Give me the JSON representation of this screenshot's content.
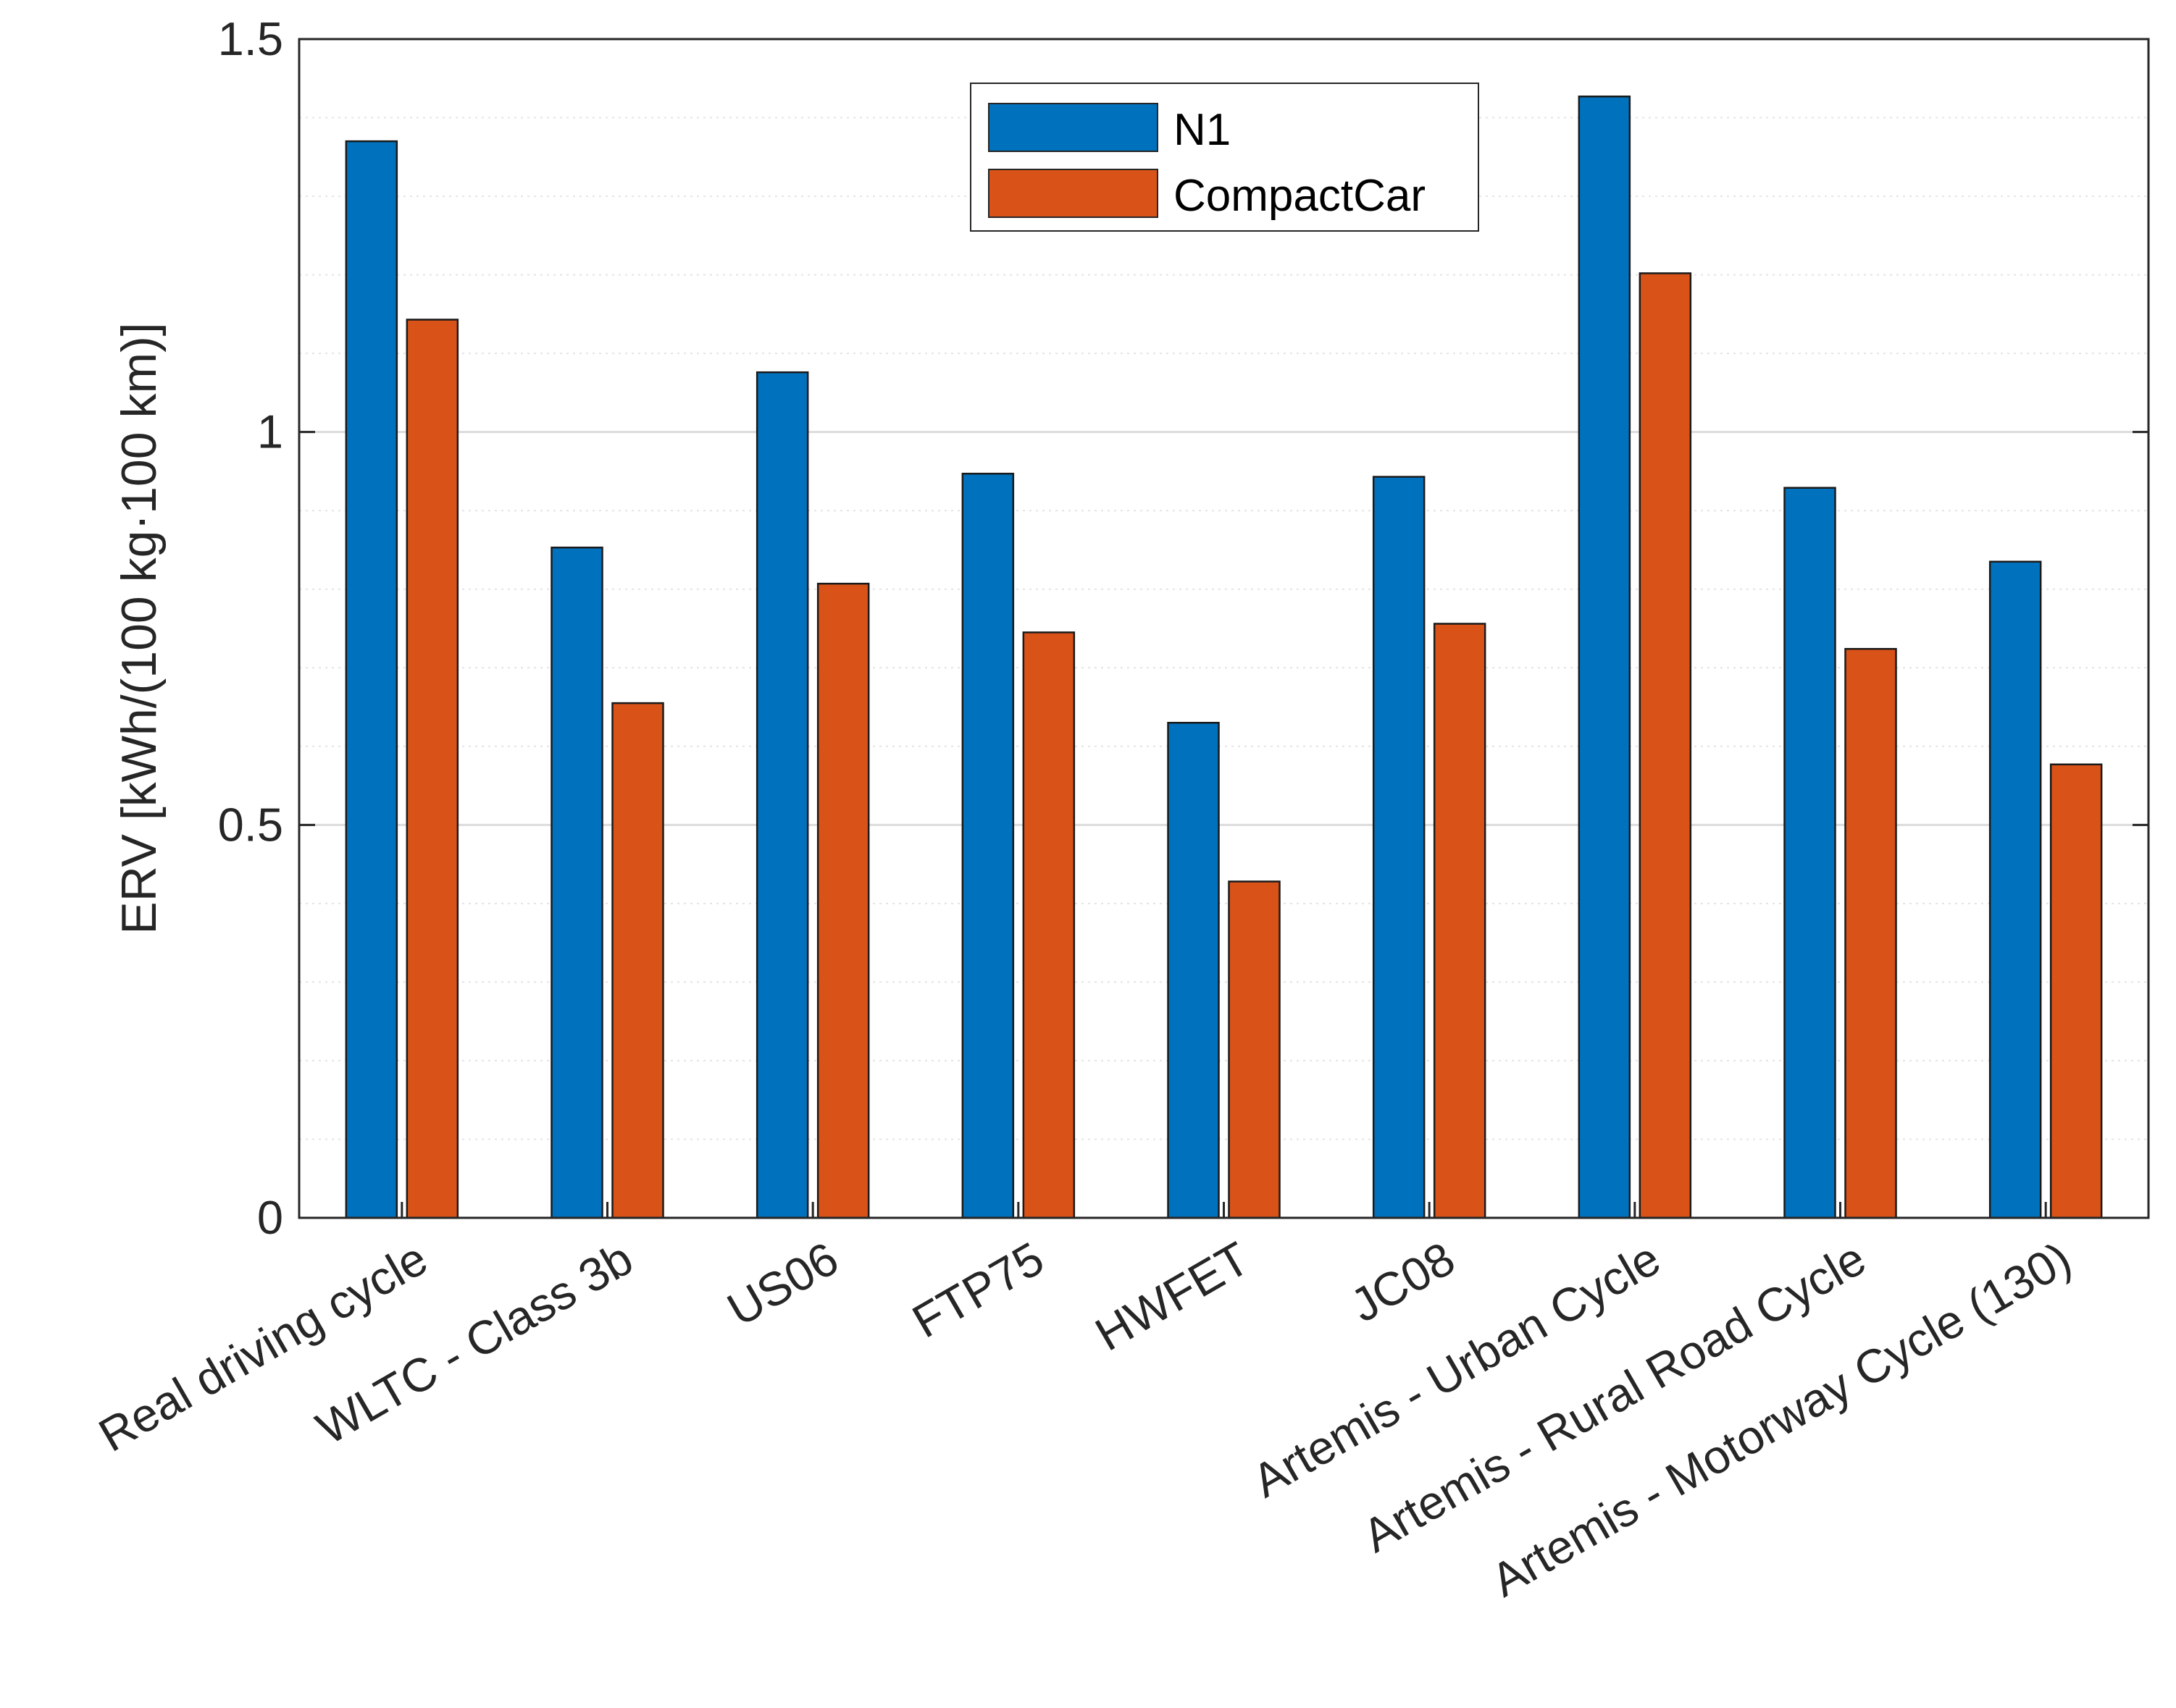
{
  "chart_data": {
    "type": "bar",
    "title": "",
    "xlabel": "",
    "ylabel": "ERV [kWh/(100 kg·100 km)]",
    "ylim": [
      0,
      1.5
    ],
    "yticks": [
      "0",
      "0.5",
      "1",
      "1.5"
    ],
    "grid": true,
    "minor_grid": true,
    "legend_placement": "top-center",
    "categories": [
      "Real driving cycle",
      "WLTC - Class 3b",
      "US06",
      "FTP75",
      "HWFET",
      "JC08",
      "Artemis - Urban Cycle",
      "Artemis - Rural Road Cycle",
      "Artemis - Motorway Cycle (130)"
    ],
    "series": [
      {
        "name": "N1",
        "color": "#0072BD",
        "values": [
          1.37,
          0.853,
          1.076,
          0.947,
          0.63,
          0.943,
          1.427,
          0.929,
          0.835
        ]
      },
      {
        "name": "CompactCar",
        "color": "#D95319",
        "values": [
          1.143,
          0.655,
          0.807,
          0.745,
          0.428,
          0.756,
          1.202,
          0.724,
          0.577
        ]
      }
    ]
  }
}
